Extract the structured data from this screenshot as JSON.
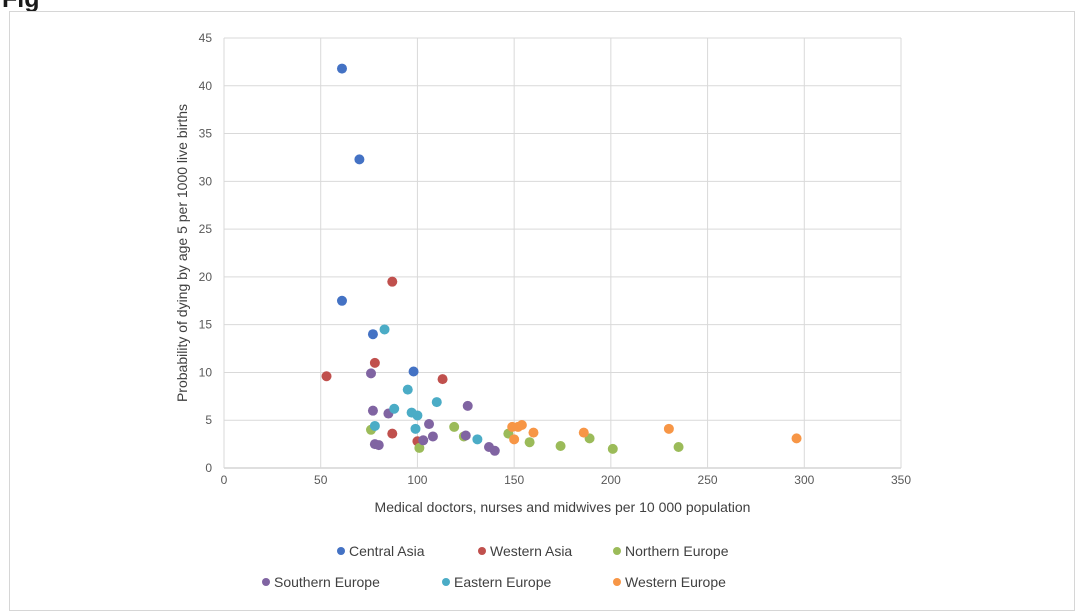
{
  "title": "Fig",
  "colors": {
    "Central Asia": "#4472C4",
    "Western Asia": "#C0504D",
    "Northern Europe": "#9BBB59",
    "Southern Europe": "#8064A2",
    "Eastern Europe": "#4BACC6",
    "Western Europe": "#F79646"
  },
  "chart_data": {
    "type": "scatter",
    "title": "",
    "xlabel": "Medical doctors, nurses and midwives per 10 000 population",
    "ylabel": "Probability of dying by age 5 per 1000 live births",
    "xlim": [
      0,
      350
    ],
    "ylim": [
      0,
      45
    ],
    "x_ticks": [
      0,
      50,
      100,
      150,
      200,
      250,
      300,
      350
    ],
    "y_ticks": [
      0,
      5,
      10,
      15,
      20,
      25,
      30,
      35,
      40,
      45
    ],
    "grid": true,
    "legend_position": "bottom",
    "series": [
      {
        "name": "Central Asia",
        "x": [
          61,
          70,
          61,
          77,
          98
        ],
        "y": [
          41.8,
          32.3,
          17.5,
          14,
          10.1
        ]
      },
      {
        "name": "Western Asia",
        "x": [
          53,
          78,
          87,
          113,
          87,
          100
        ],
        "y": [
          9.6,
          11,
          19.5,
          9.3,
          3.6,
          2.8
        ]
      },
      {
        "name": "Northern Europe",
        "x": [
          76,
          101,
          119,
          124,
          147,
          158,
          174,
          189,
          201,
          235
        ],
        "y": [
          4,
          2.1,
          4.3,
          3.3,
          3.6,
          2.7,
          2.3,
          3.1,
          2,
          2.2
        ]
      },
      {
        "name": "Southern Europe",
        "x": [
          76,
          77,
          78,
          80,
          85,
          103,
          106,
          108,
          125,
          126,
          137,
          140
        ],
        "y": [
          9.9,
          6,
          2.5,
          2.4,
          5.7,
          2.9,
          4.6,
          3.3,
          3.4,
          6.5,
          2.2,
          1.8
        ]
      },
      {
        "name": "Eastern Europe",
        "x": [
          78,
          83,
          88,
          95,
          97,
          99,
          100,
          110,
          131
        ],
        "y": [
          4.4,
          14.5,
          6.2,
          8.2,
          5.8,
          4.1,
          5.5,
          6.9,
          3
        ]
      },
      {
        "name": "Western Europe",
        "x": [
          149,
          150,
          152,
          154,
          160,
          186,
          230,
          296
        ],
        "y": [
          4.3,
          3,
          4.3,
          4.5,
          3.7,
          3.7,
          4.1,
          3.1
        ]
      }
    ]
  }
}
